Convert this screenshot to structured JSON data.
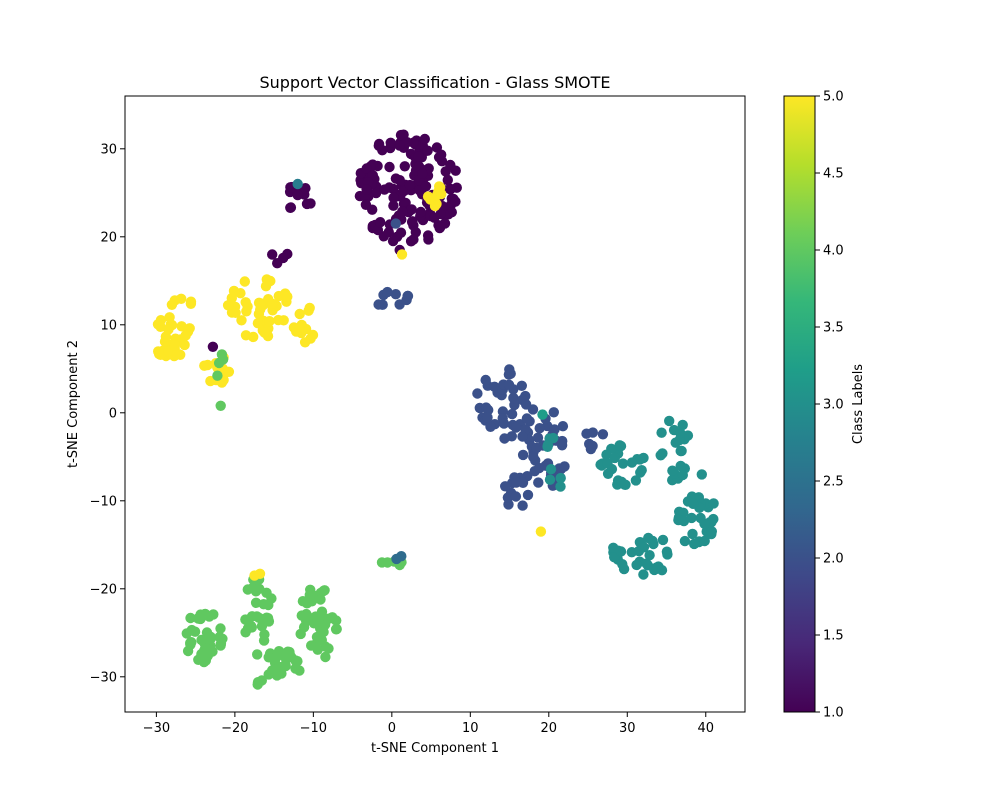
{
  "chart_data": {
    "type": "scatter",
    "title": "Support Vector Classification - Glass SMOTE",
    "xlabel": "t-SNE Component 1",
    "ylabel": "t-SNE Component 2",
    "xlim": [
      -34,
      45
    ],
    "ylim": [
      -34,
      36
    ],
    "xticks": [
      -30,
      -20,
      -10,
      0,
      10,
      20,
      30,
      40
    ],
    "yticks": [
      -30,
      -20,
      -10,
      0,
      10,
      20,
      30
    ],
    "grid": false,
    "colorbar": {
      "label": "Class Labels",
      "range": [
        1.0,
        5.0
      ],
      "ticks": [
        1.0,
        1.5,
        2.0,
        2.5,
        3.0,
        3.5,
        4.0,
        4.5,
        5.0
      ],
      "tick_labels": [
        "1.0",
        "1.5",
        "2.0",
        "2.5",
        "3.0",
        "3.5",
        "4.0",
        "4.5",
        "5.0"
      ],
      "colormap": "viridis",
      "colors": [
        "#440154",
        "#482878",
        "#3e4989",
        "#31688e",
        "#26828e",
        "#1f9e89",
        "#35b779",
        "#6ece58",
        "#b5de2b",
        "#fde725"
      ]
    },
    "clusters": [
      {
        "label": 1,
        "cx": 2,
        "cy": 25.5,
        "rx": 6.5,
        "ry": 6.5,
        "n": 150,
        "seed": 11
      },
      {
        "label": 1,
        "cx": -12,
        "cy": 24.5,
        "rx": 2,
        "ry": 1.5,
        "n": 12,
        "seed": 12
      },
      {
        "label": 1,
        "cx": -14,
        "cy": 17.5,
        "rx": 1.5,
        "ry": 1,
        "n": 4,
        "seed": 13
      },
      {
        "label": 5,
        "cx": -28,
        "cy": 8.5,
        "rx": 2.5,
        "ry": 2.5,
        "n": 35,
        "seed": 21
      },
      {
        "label": 5,
        "cx": -17,
        "cy": 12,
        "rx": 4,
        "ry": 3.5,
        "n": 45,
        "seed": 22
      },
      {
        "label": 5,
        "cx": -22,
        "cy": 5,
        "rx": 2,
        "ry": 2.5,
        "n": 15,
        "seed": 23
      },
      {
        "label": 5,
        "cx": -11,
        "cy": 10,
        "rx": 1.5,
        "ry": 2.5,
        "n": 12,
        "seed": 24
      },
      {
        "label": 5,
        "cx": -27,
        "cy": 12.5,
        "rx": 1.5,
        "ry": 0.6,
        "n": 5,
        "seed": 25
      },
      {
        "label": 5,
        "cx": 5.5,
        "cy": 25,
        "rx": 1,
        "ry": 1.5,
        "n": 8,
        "seed": 26
      },
      {
        "label": 2,
        "cx": 14.5,
        "cy": 1,
        "rx": 4,
        "ry": 4,
        "n": 40,
        "seed": 31
      },
      {
        "label": 2,
        "cx": 19.5,
        "cy": -4,
        "rx": 3,
        "ry": 5,
        "n": 40,
        "seed": 32
      },
      {
        "label": 2,
        "cx": 16,
        "cy": -9,
        "rx": 2,
        "ry": 2,
        "n": 12,
        "seed": 33
      },
      {
        "label": 2,
        "cx": 26,
        "cy": -3,
        "rx": 1.5,
        "ry": 1.5,
        "n": 6,
        "seed": 34
      },
      {
        "label": 2,
        "cx": 0,
        "cy": 13,
        "rx": 2.5,
        "ry": 1,
        "n": 9,
        "seed": 35
      },
      {
        "label": 3,
        "cx": 29.5,
        "cy": -6,
        "rx": 3,
        "ry": 2.5,
        "n": 25,
        "seed": 41
      },
      {
        "label": 3,
        "cx": 36,
        "cy": -4,
        "rx": 2,
        "ry": 4,
        "n": 20,
        "seed": 42
      },
      {
        "label": 3,
        "cx": 38.5,
        "cy": -12.5,
        "rx": 2.5,
        "ry": 3,
        "n": 30,
        "seed": 43
      },
      {
        "label": 3,
        "cx": 32,
        "cy": -16,
        "rx": 4,
        "ry": 2.5,
        "n": 30,
        "seed": 44
      },
      {
        "label": 3,
        "cx": 20.5,
        "cy": -6,
        "rx": 1.5,
        "ry": 3.5,
        "n": 8,
        "seed": 45
      },
      {
        "label": 4,
        "cx": -24,
        "cy": -25.5,
        "rx": 2.5,
        "ry": 3,
        "n": 40,
        "seed": 51
      },
      {
        "label": 4,
        "cx": -17,
        "cy": -23,
        "rx": 2,
        "ry": 4.5,
        "n": 30,
        "seed": 52
      },
      {
        "label": 4,
        "cx": -14,
        "cy": -28.5,
        "rx": 3,
        "ry": 1.5,
        "n": 25,
        "seed": 53
      },
      {
        "label": 4,
        "cx": -9.5,
        "cy": -24,
        "rx": 2.5,
        "ry": 4.5,
        "n": 40,
        "seed": 54
      },
      {
        "label": 4,
        "cx": -17,
        "cy": -30.5,
        "rx": 0.7,
        "ry": 0.5,
        "n": 4,
        "seed": 55
      },
      {
        "label": 4,
        "cx": 0,
        "cy": -17,
        "rx": 1.3,
        "ry": 0.8,
        "n": 6,
        "seed": 56
      },
      {
        "label": 4,
        "cx": -22,
        "cy": 4,
        "rx": 0.8,
        "ry": 3,
        "n": 4,
        "seed": 57
      }
    ],
    "extra_points": [
      {
        "x": -22.8,
        "y": 7.5,
        "label": 1
      },
      {
        "x": 1,
        "y": 18.5,
        "label": 1
      },
      {
        "x": -12,
        "y": 26,
        "label": 2.7
      },
      {
        "x": 0.5,
        "y": 21.5,
        "label": 2.0
      },
      {
        "x": 1.3,
        "y": 18,
        "label": 5
      },
      {
        "x": 5.5,
        "y": 23.5,
        "label": 5
      },
      {
        "x": 19,
        "y": -13.5,
        "label": 5
      },
      {
        "x": -17.5,
        "y": -18.5,
        "label": 5
      },
      {
        "x": -16.8,
        "y": -18.3,
        "label": 5
      },
      {
        "x": 19.2,
        "y": -0.2,
        "label": 3.2
      },
      {
        "x": 1.2,
        "y": -16.3,
        "label": 2.4
      },
      {
        "x": 0.6,
        "y": -16.6,
        "label": 2.4
      },
      {
        "x": -21.8,
        "y": 0.8,
        "label": 4
      },
      {
        "x": 41,
        "y": -10.3,
        "label": 3
      },
      {
        "x": 39.5,
        "y": -7,
        "label": 3
      }
    ]
  }
}
